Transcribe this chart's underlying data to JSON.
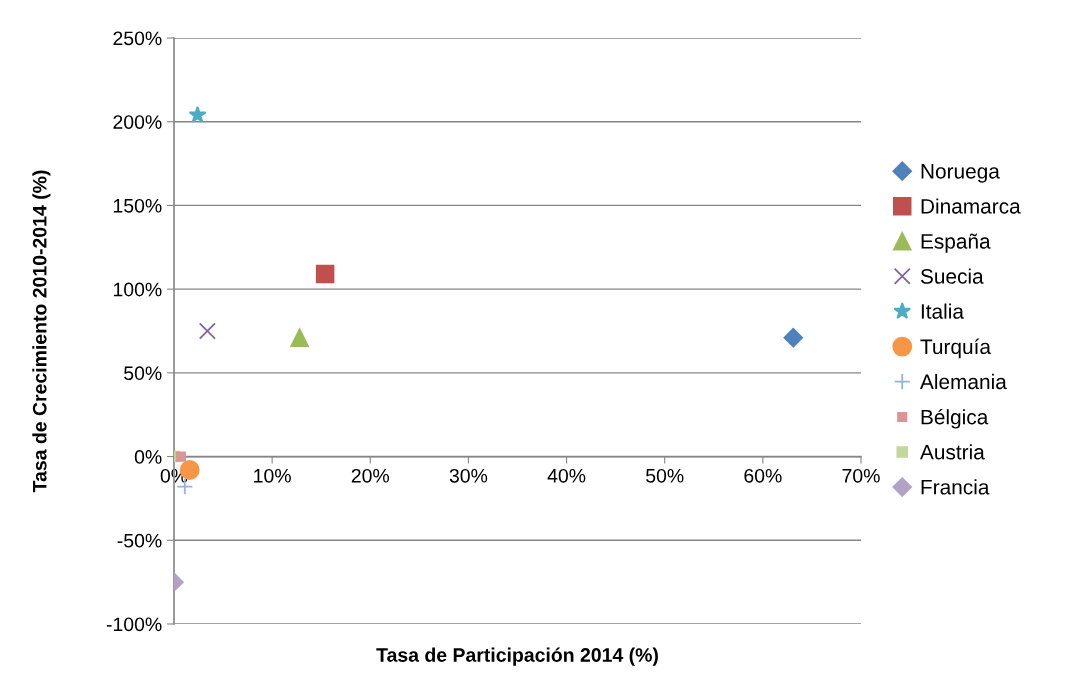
{
  "chart_data": {
    "type": "scatter",
    "xlabel": "Tasa de Participación 2014 (%)",
    "ylabel": "Tasa de Crecimiento 2010-2014 (%)",
    "xlim": [
      0,
      70
    ],
    "ylim": [
      -100,
      250
    ],
    "xticks": [
      {
        "value": 0,
        "label": "0%"
      },
      {
        "value": 10,
        "label": "10%"
      },
      {
        "value": 20,
        "label": "20%"
      },
      {
        "value": 30,
        "label": "30%"
      },
      {
        "value": 40,
        "label": "40%"
      },
      {
        "value": 50,
        "label": "50%"
      },
      {
        "value": 60,
        "label": "60%"
      },
      {
        "value": 70,
        "label": "70%"
      }
    ],
    "yticks": [
      {
        "value": -100,
        "label": "-100%"
      },
      {
        "value": -50,
        "label": "-50%"
      },
      {
        "value": 0,
        "label": "0%"
      },
      {
        "value": 50,
        "label": "50%"
      },
      {
        "value": 100,
        "label": "100%"
      },
      {
        "value": 150,
        "label": "150%"
      },
      {
        "value": 200,
        "label": "200%"
      },
      {
        "value": 250,
        "label": "250%"
      }
    ],
    "grid": "y",
    "legend": "right",
    "series": [
      {
        "name": "Noruega",
        "color": "#4f81bd",
        "marker": "diamond",
        "x": [
          63.1
        ],
        "values": [
          71
        ]
      },
      {
        "name": "Dinamarca",
        "color": "#c0504d",
        "marker": "square",
        "x": [
          15.4
        ],
        "values": [
          109
        ]
      },
      {
        "name": "España",
        "color": "#9bbb59",
        "marker": "triangle",
        "x": [
          12.8
        ],
        "values": [
          71
        ]
      },
      {
        "name": "Suecia",
        "color": "#8064a2",
        "marker": "cross",
        "x": [
          3.4
        ],
        "values": [
          75
        ]
      },
      {
        "name": "Italia",
        "color": "#4bacc6",
        "marker": "star",
        "x": [
          2.4
        ],
        "values": [
          204
        ]
      },
      {
        "name": "Turquía",
        "color": "#f79646",
        "marker": "circle",
        "x": [
          1.6
        ],
        "values": [
          -8
        ]
      },
      {
        "name": "Alemania",
        "color": "#95b3d7",
        "x": [
          1.1
        ],
        "values": [
          -18
        ]
      },
      {
        "name": "Bélgica",
        "color": "#d99694",
        "x": [
          0.7
        ],
        "values": [
          0
        ]
      },
      {
        "name": "Austria",
        "color": "#c3d69b",
        "x": [
          0
        ],
        "values": [
          0
        ]
      },
      {
        "name": "Francia",
        "color": "#b2a2c7",
        "marker": "diamond",
        "x": [
          0
        ],
        "values": [
          -75
        ]
      }
    ]
  }
}
